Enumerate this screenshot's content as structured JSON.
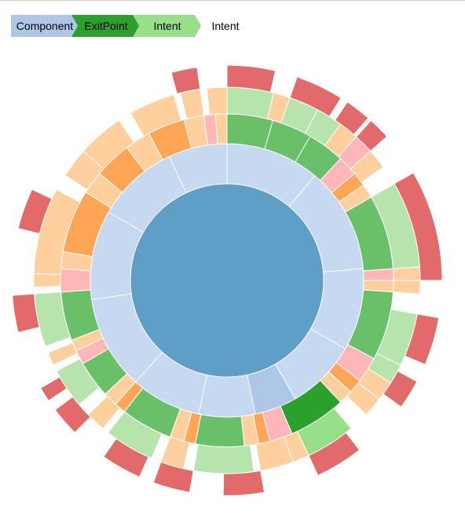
{
  "breadcrumb": {
    "items": [
      {
        "label": "Component",
        "color": "#aec7e8"
      },
      {
        "label": "ExitPoint",
        "color": "#2ca02c"
      },
      {
        "label": "Intent",
        "color": "#98df8a"
      }
    ],
    "trail_end_label": "Intent"
  },
  "colors": {
    "root": "#5f9ec7",
    "component": "#c6d9f0",
    "component_selected": "#aec7e8",
    "exitpoint": "#6abf69",
    "exitpoint_selected": "#2ca02c",
    "intent_green": "#b7e4ad",
    "intent_peach": "#ffcf9e",
    "intent_orange": "#ffa556",
    "intent_pink": "#ffb6b8",
    "outer_red": "#e26a6a",
    "intent_selected": "#98df8a"
  }
}
